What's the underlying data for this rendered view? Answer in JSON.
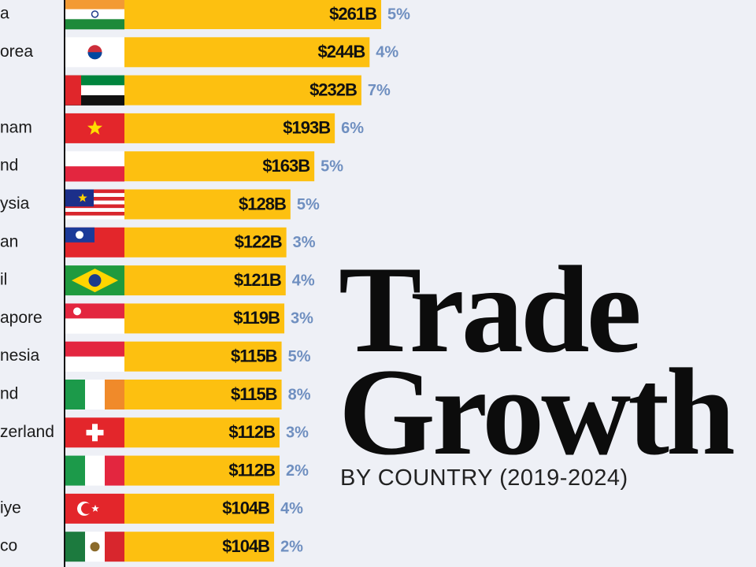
{
  "chart_data": {
    "type": "bar",
    "title_lines": [
      "Trade",
      "Growth"
    ],
    "subtitle": "BY COUNTRY (2019-2024)",
    "categories": [
      "a",
      "orea",
      null,
      "nam",
      "nd",
      "ysia",
      "an",
      "il",
      "apore",
      "nesia",
      "nd",
      "zerland",
      null,
      "iye",
      "co"
    ],
    "values": [
      261,
      244,
      232,
      193,
      163,
      128,
      122,
      121,
      119,
      115,
      115,
      112,
      112,
      104,
      104
    ],
    "value_labels": [
      "$261B",
      "$244B",
      "$232B",
      "$193B",
      "$163B",
      "$128B",
      "$122B",
      "$121B",
      "$119B",
      "$115B",
      "$115B",
      "$112B",
      "$112B",
      "$104B",
      "$104B"
    ],
    "color": "#fdc010",
    "growth": {
      "values": [
        5,
        4,
        7,
        6,
        5,
        5,
        3,
        4,
        3,
        5,
        8,
        3,
        2,
        4,
        2
      ],
      "value_labels": [
        "5%",
        "4%",
        "7%",
        "6%",
        "5%",
        "5%",
        "3%",
        "4%",
        "3%",
        "5%",
        "8%",
        "3%",
        "2%",
        "4%",
        "2%"
      ]
    }
  }
}
